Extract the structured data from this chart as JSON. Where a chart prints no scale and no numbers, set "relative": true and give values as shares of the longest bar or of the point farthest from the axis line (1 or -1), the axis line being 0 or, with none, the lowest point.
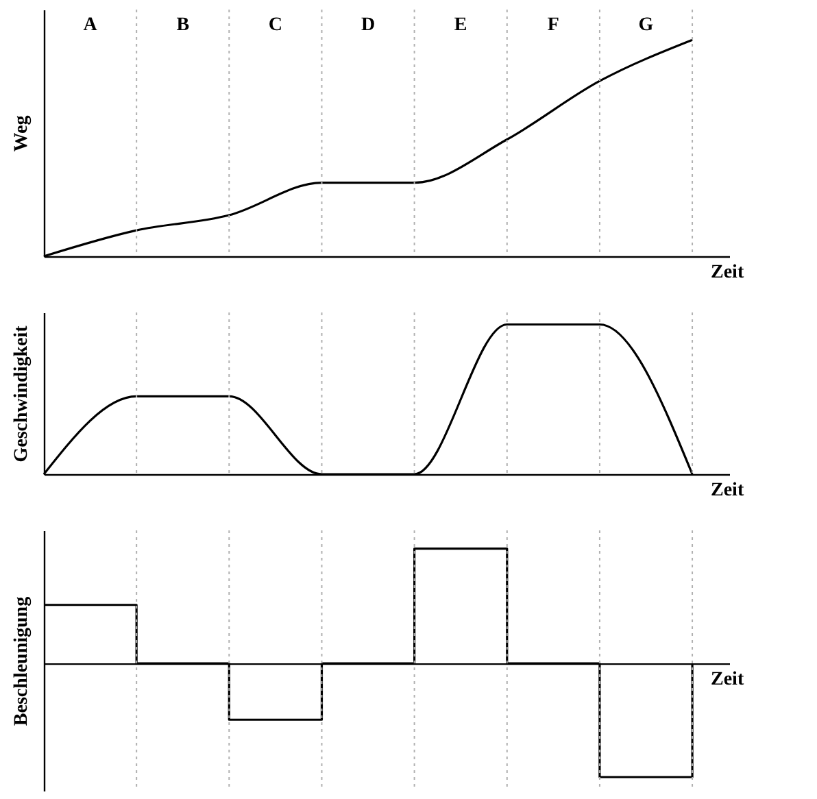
{
  "chart_data": [
    {
      "type": "line",
      "ylabel": "Weg",
      "xlabel": "Zeit",
      "relative": true,
      "tick_labels": false,
      "grid": "x",
      "annotations": [
        "A",
        "B",
        "C",
        "D",
        "E",
        "F",
        "G"
      ],
      "categories": [
        null,
        null,
        null,
        null,
        null,
        null,
        null,
        null
      ],
      "series": [
        {
          "color": "#000000",
          "values": [
            0,
            0.12,
            0.19,
            0.34,
            0.34,
            0.54,
            0.81,
            1
          ]
        }
      ]
    },
    {
      "type": "line",
      "ylabel": "Geschwindigkeit",
      "xlabel": "Zeit",
      "relative": true,
      "tick_labels": false,
      "grid": "x",
      "categories": [
        null,
        null,
        null,
        null,
        null,
        null,
        null,
        null
      ],
      "series": [
        {
          "color": "#000000",
          "values": [
            0,
            0.52,
            0.52,
            0,
            0,
            1,
            1,
            0
          ]
        }
      ]
    },
    {
      "type": "step",
      "ylabel": "Beschleunigung",
      "xlabel": "Zeit",
      "relative": true,
      "tick_labels": false,
      "grid": "x",
      "categories": [
        null,
        null,
        null,
        null,
        null,
        null,
        null,
        null
      ],
      "series": [
        {
          "color": "#000000",
          "values": [
            0.51,
            0,
            -0.49,
            0,
            1,
            0,
            -0.99,
            0
          ]
        }
      ]
    }
  ]
}
